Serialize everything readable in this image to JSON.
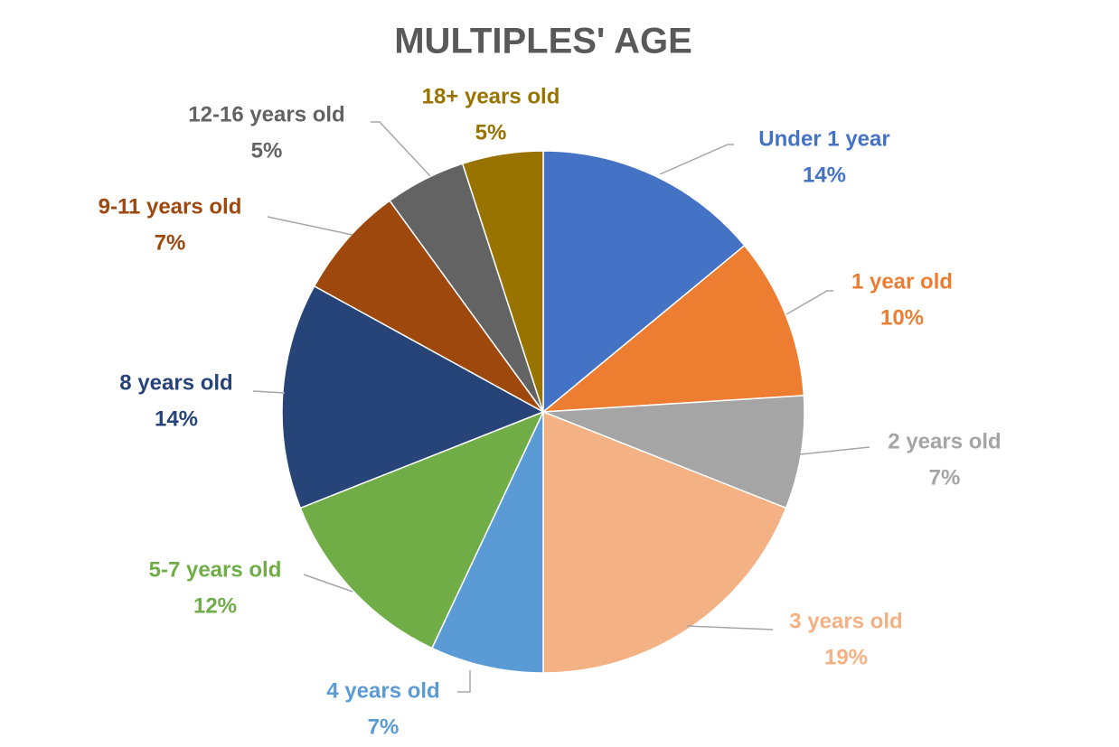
{
  "chart_data": {
    "type": "pie",
    "title": "MULTIPLES' AGE",
    "categories": [
      "Under 1 year",
      "1 year old",
      "2 years old",
      "3 years old",
      "4 years old",
      "5-7 years old",
      "8 years old",
      "9-11 years old",
      "12-16 years old",
      "18+ years old"
    ],
    "values": [
      14,
      10,
      7,
      19,
      7,
      12,
      14,
      7,
      5,
      5
    ],
    "value_labels": [
      "14%",
      "10%",
      "7%",
      "19%",
      "7%",
      "12%",
      "14%",
      "7%",
      "5%",
      "5%"
    ],
    "colors": [
      "#4472c4",
      "#ed7d31",
      "#a5a5a5",
      "#f4b183",
      "#5b9bd5",
      "#70ad47",
      "#264478",
      "#9e480e",
      "#636363",
      "#997300"
    ]
  }
}
